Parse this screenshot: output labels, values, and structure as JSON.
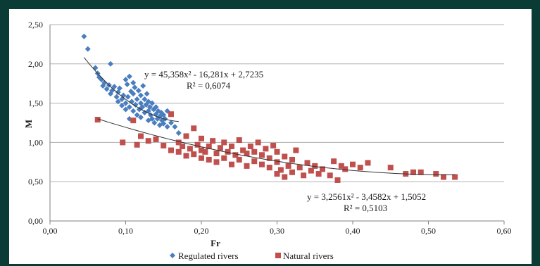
{
  "chart_data": {
    "type": "scatter",
    "title": "",
    "xlabel": "Fr",
    "ylabel": "M",
    "xlim": [
      0,
      0.6
    ],
    "ylim": [
      0,
      2.5
    ],
    "x_ticks": [
      0,
      0.1,
      0.2,
      0.3,
      0.4,
      0.5,
      0.6
    ],
    "y_ticks": [
      0,
      0.5,
      1.0,
      1.5,
      2.0,
      2.5
    ],
    "x_tick_labels": [
      "0,00",
      "0,10",
      "0,20",
      "0,30",
      "0,40",
      "0,50",
      "0,60"
    ],
    "y_tick_labels": [
      "0,00",
      "0,50",
      "1,00",
      "1,50",
      "2,00",
      "2,50"
    ],
    "grid": "horizontal",
    "legend": "bottom",
    "series": [
      {
        "name": "Regulated rivers",
        "marker": "diamond",
        "color": "#4a7ebf",
        "points": [
          [
            0.045,
            2.35
          ],
          [
            0.05,
            2.19
          ],
          [
            0.06,
            1.95
          ],
          [
            0.063,
            1.88
          ],
          [
            0.065,
            1.83
          ],
          [
            0.068,
            1.8
          ],
          [
            0.07,
            1.72
          ],
          [
            0.072,
            1.76
          ],
          [
            0.075,
            1.68
          ],
          [
            0.078,
            1.73
          ],
          [
            0.08,
            2.0
          ],
          [
            0.08,
            1.62
          ],
          [
            0.082,
            1.66
          ],
          [
            0.085,
            1.71
          ],
          [
            0.088,
            1.58
          ],
          [
            0.09,
            1.64
          ],
          [
            0.09,
            1.52
          ],
          [
            0.092,
            1.69
          ],
          [
            0.095,
            1.55
          ],
          [
            0.095,
            1.47
          ],
          [
            0.097,
            1.6
          ],
          [
            0.1,
            1.8
          ],
          [
            0.1,
            1.5
          ],
          [
            0.1,
            1.42
          ],
          [
            0.102,
            1.74
          ],
          [
            0.103,
            1.58
          ],
          [
            0.105,
            1.84
          ],
          [
            0.105,
            1.45
          ],
          [
            0.105,
            1.3
          ],
          [
            0.107,
            1.65
          ],
          [
            0.108,
            1.52
          ],
          [
            0.11,
            1.76
          ],
          [
            0.11,
            1.62
          ],
          [
            0.11,
            1.4
          ],
          [
            0.11,
            1.28
          ],
          [
            0.112,
            1.7
          ],
          [
            0.113,
            1.48
          ],
          [
            0.115,
            1.55
          ],
          [
            0.115,
            1.35
          ],
          [
            0.117,
            1.66
          ],
          [
            0.118,
            1.42
          ],
          [
            0.12,
            1.6
          ],
          [
            0.12,
            1.5
          ],
          [
            0.12,
            1.32
          ],
          [
            0.122,
            1.45
          ],
          [
            0.123,
            1.72
          ],
          [
            0.125,
            1.55
          ],
          [
            0.125,
            1.38
          ],
          [
            0.127,
            1.48
          ],
          [
            0.128,
            1.62
          ],
          [
            0.13,
            1.52
          ],
          [
            0.13,
            1.4
          ],
          [
            0.13,
            1.28
          ],
          [
            0.132,
            1.45
          ],
          [
            0.133,
            1.35
          ],
          [
            0.135,
            1.5
          ],
          [
            0.135,
            1.3
          ],
          [
            0.137,
            1.42
          ],
          [
            0.138,
            1.25
          ],
          [
            0.14,
            1.45
          ],
          [
            0.14,
            1.36
          ],
          [
            0.142,
            1.3
          ],
          [
            0.143,
            1.4
          ],
          [
            0.145,
            1.33
          ],
          [
            0.145,
            1.22
          ],
          [
            0.147,
            1.38
          ],
          [
            0.148,
            1.28
          ],
          [
            0.15,
            1.35
          ],
          [
            0.15,
            1.24
          ],
          [
            0.152,
            1.3
          ],
          [
            0.155,
            1.4
          ],
          [
            0.155,
            1.2
          ],
          [
            0.16,
            1.25
          ],
          [
            0.165,
            1.2
          ],
          [
            0.17,
            1.12
          ]
        ]
      },
      {
        "name": "Natural rivers",
        "marker": "square",
        "color": "#c0504d",
        "points": [
          [
            0.063,
            1.29
          ],
          [
            0.096,
            1.0
          ],
          [
            0.11,
            1.28
          ],
          [
            0.115,
            0.97
          ],
          [
            0.12,
            1.08
          ],
          [
            0.13,
            1.02
          ],
          [
            0.14,
            1.04
          ],
          [
            0.15,
            0.96
          ],
          [
            0.16,
            1.36
          ],
          [
            0.16,
            0.9
          ],
          [
            0.17,
            1.0
          ],
          [
            0.17,
            0.88
          ],
          [
            0.175,
            0.95
          ],
          [
            0.18,
            0.83
          ],
          [
            0.18,
            1.08
          ],
          [
            0.185,
            0.92
          ],
          [
            0.19,
            0.85
          ],
          [
            0.19,
            1.18
          ],
          [
            0.195,
            0.97
          ],
          [
            0.2,
            0.8
          ],
          [
            0.2,
            0.9
          ],
          [
            0.2,
            1.05
          ],
          [
            0.205,
            0.88
          ],
          [
            0.21,
            0.78
          ],
          [
            0.21,
            0.95
          ],
          [
            0.215,
            1.02
          ],
          [
            0.22,
            0.86
          ],
          [
            0.22,
            0.75
          ],
          [
            0.225,
            0.93
          ],
          [
            0.23,
            0.8
          ],
          [
            0.23,
            1.0
          ],
          [
            0.235,
            0.88
          ],
          [
            0.24,
            0.72
          ],
          [
            0.24,
            0.95
          ],
          [
            0.245,
            0.84
          ],
          [
            0.25,
            0.78
          ],
          [
            0.25,
            1.03
          ],
          [
            0.255,
            0.9
          ],
          [
            0.26,
            0.7
          ],
          [
            0.26,
            0.86
          ],
          [
            0.265,
            0.95
          ],
          [
            0.27,
            0.76
          ],
          [
            0.27,
            0.88
          ],
          [
            0.275,
            1.0
          ],
          [
            0.28,
            0.72
          ],
          [
            0.28,
            0.84
          ],
          [
            0.285,
            0.92
          ],
          [
            0.29,
            0.68
          ],
          [
            0.29,
            0.8
          ],
          [
            0.295,
            0.96
          ],
          [
            0.3,
            0.6
          ],
          [
            0.3,
            0.75
          ],
          [
            0.3,
            0.88
          ],
          [
            0.305,
            0.65
          ],
          [
            0.31,
            0.56
          ],
          [
            0.31,
            0.82
          ],
          [
            0.315,
            0.7
          ],
          [
            0.32,
            0.62
          ],
          [
            0.32,
            0.78
          ],
          [
            0.325,
            0.9
          ],
          [
            0.33,
            0.68
          ],
          [
            0.335,
            0.58
          ],
          [
            0.34,
            0.74
          ],
          [
            0.345,
            0.64
          ],
          [
            0.35,
            0.7
          ],
          [
            0.355,
            0.6
          ],
          [
            0.36,
            0.66
          ],
          [
            0.37,
            0.58
          ],
          [
            0.375,
            0.76
          ],
          [
            0.38,
            0.52
          ],
          [
            0.385,
            0.7
          ],
          [
            0.39,
            0.66
          ],
          [
            0.4,
            0.72
          ],
          [
            0.41,
            0.68
          ],
          [
            0.42,
            0.74
          ],
          [
            0.45,
            0.68
          ],
          [
            0.47,
            0.6
          ],
          [
            0.48,
            0.62
          ],
          [
            0.49,
            0.62
          ],
          [
            0.51,
            0.6
          ],
          [
            0.52,
            0.56
          ],
          [
            0.535,
            0.56
          ]
        ]
      }
    ],
    "trendlines": [
      {
        "series": "Regulated rivers",
        "equation": "y = 45,358x² - 16,281x + 2,7235",
        "r_squared": "R² = 0,6074",
        "coefficients": [
          45.358,
          -16.281,
          2.7235
        ],
        "x_range": [
          0.045,
          0.17
        ]
      },
      {
        "series": "Natural rivers",
        "equation": "y = 3,2561x² - 3,4582x + 1,5052",
        "r_squared": "R² = 0,5103",
        "coefficients": [
          3.2561,
          -3.4582,
          1.5052
        ],
        "x_range": [
          0.063,
          0.535
        ]
      }
    ]
  }
}
